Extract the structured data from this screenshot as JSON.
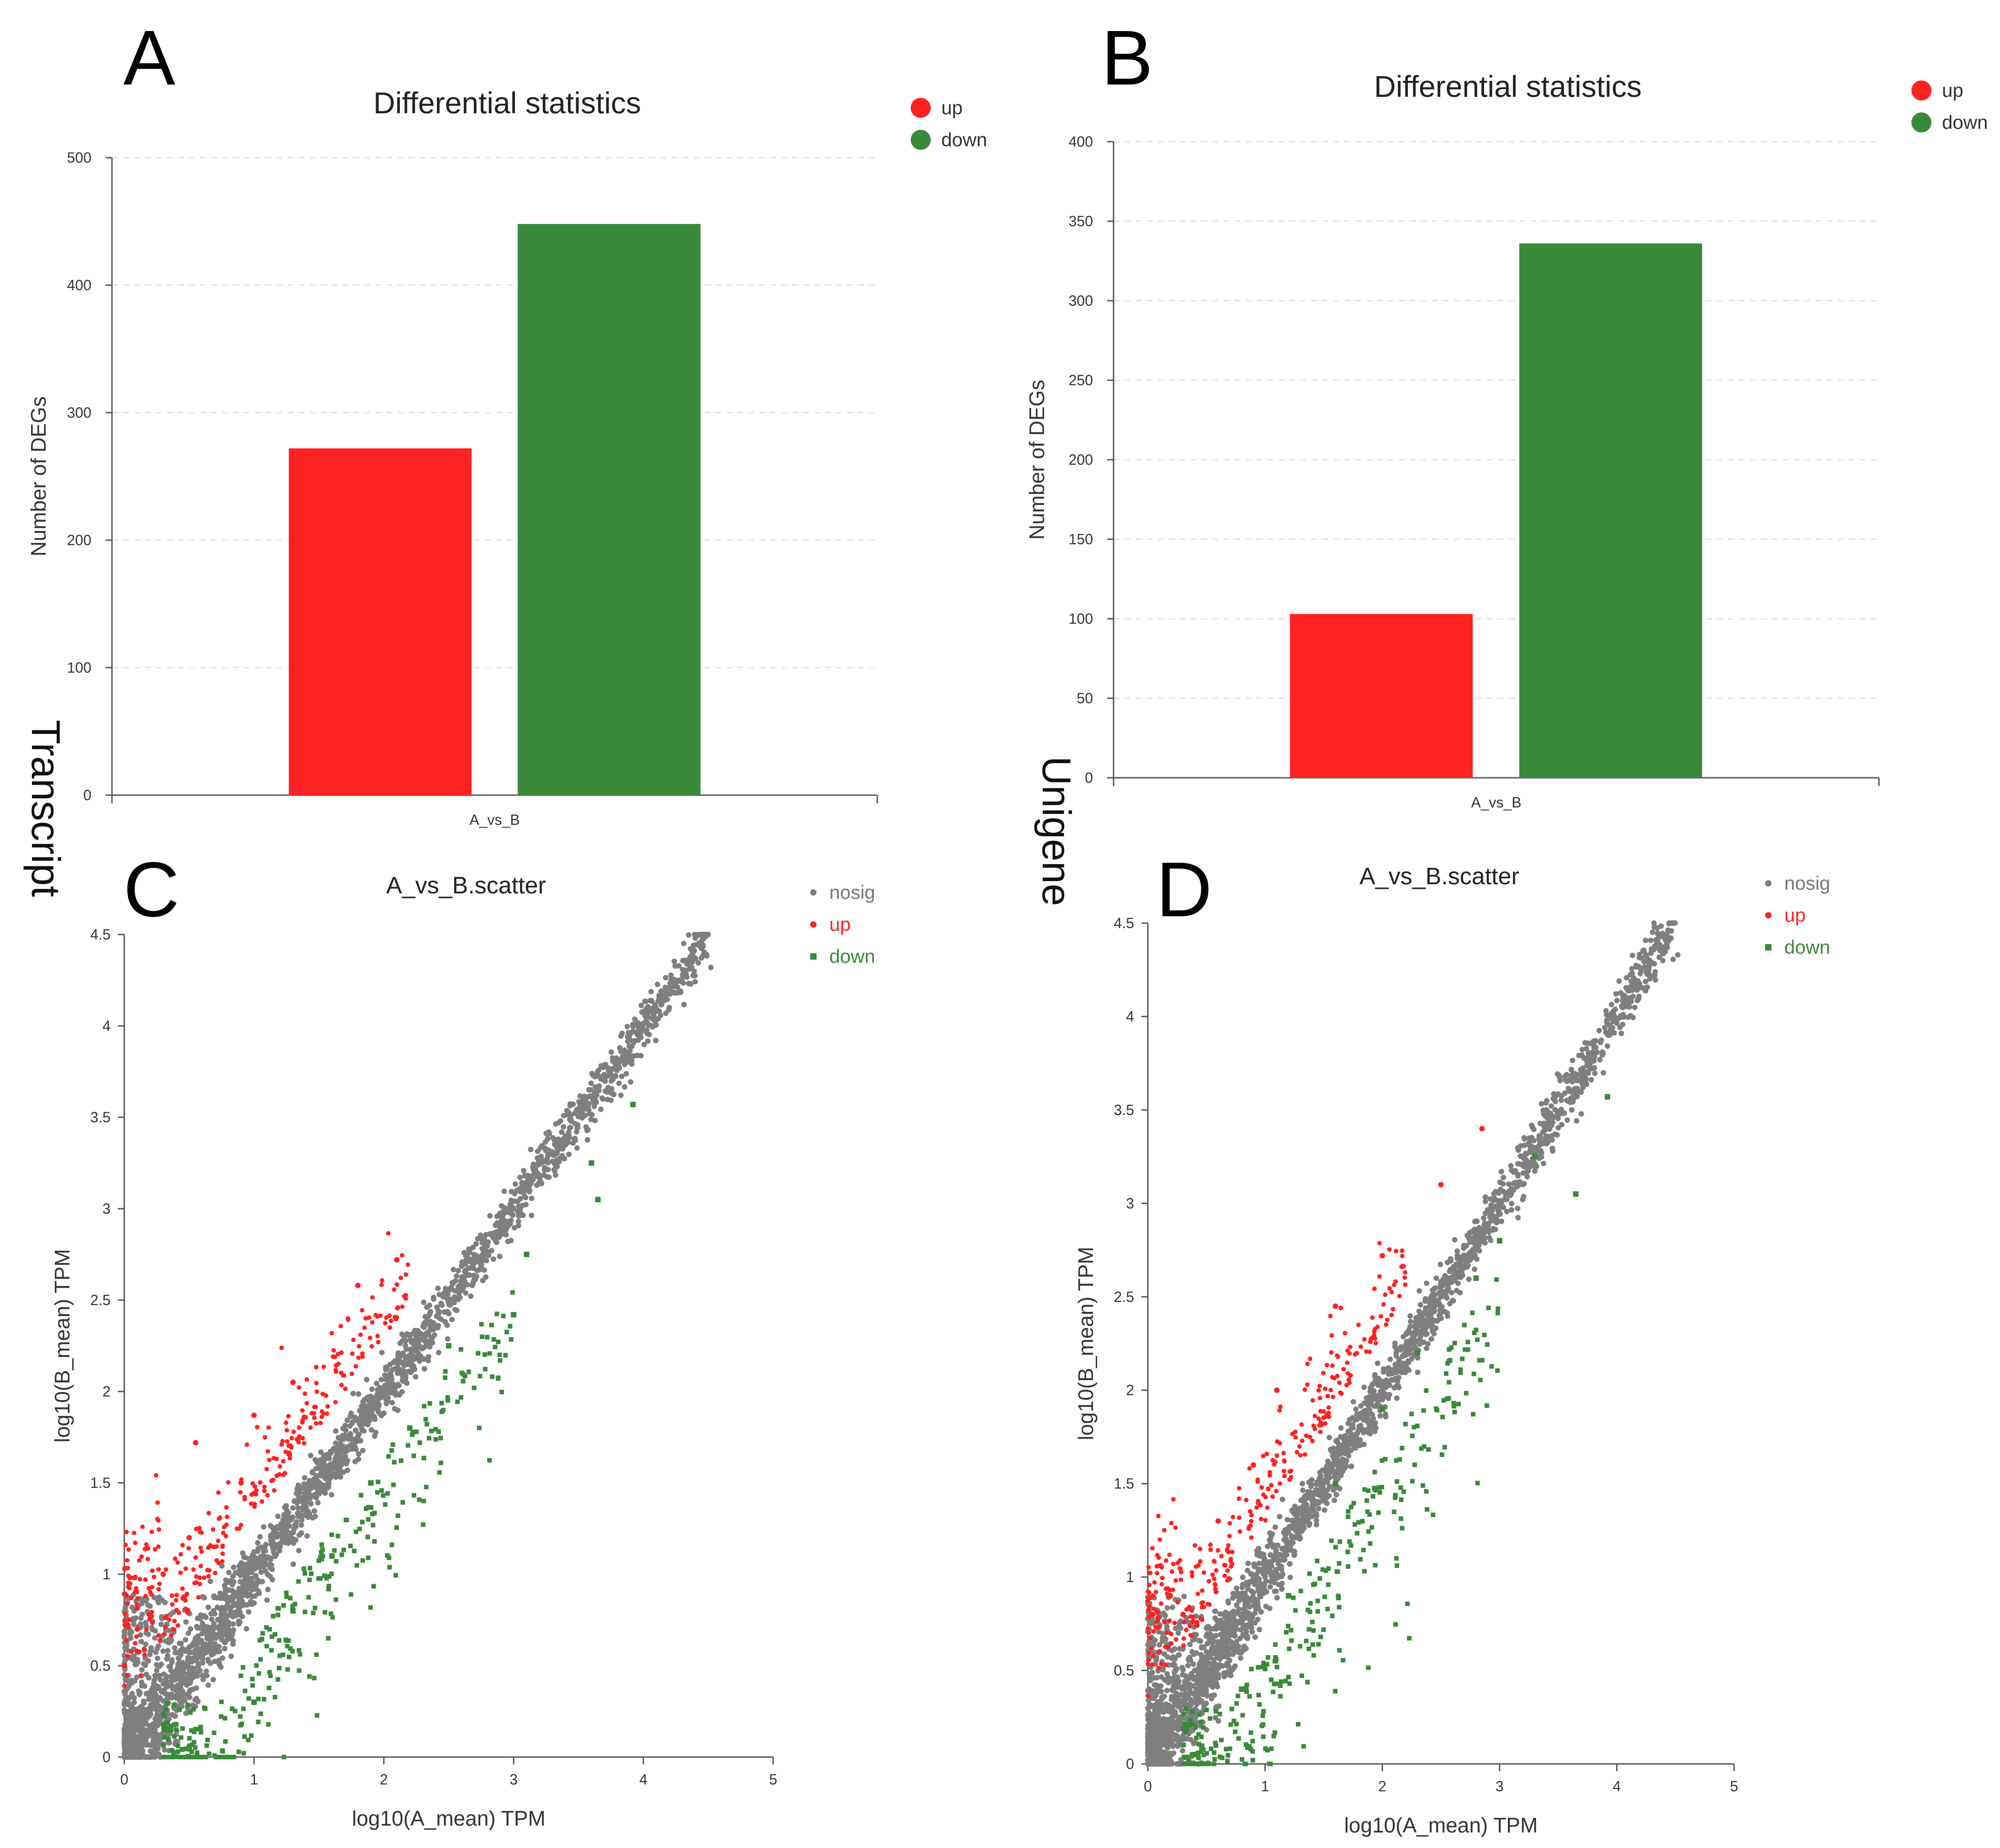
{
  "side_labels": {
    "left": "Transcript",
    "right": "Unigene"
  },
  "colors": {
    "up": "#ff2222",
    "down": "#3a8a3a",
    "nosig": "#7f7f7f",
    "grid": "#e3e3e3",
    "axis": "#555555"
  },
  "chart_data": [
    {
      "panel": "A",
      "type": "bar",
      "title": "Differential statistics",
      "ylabel": "Number of DEGs",
      "xlabel": "",
      "categories": [
        "A_vs_B"
      ],
      "series": [
        {
          "name": "up",
          "values": [
            272
          ]
        },
        {
          "name": "down",
          "values": [
            448
          ]
        }
      ],
      "ylim": [
        0,
        500
      ],
      "yticks": [
        0,
        100,
        200,
        300,
        400,
        500
      ],
      "legend": "top-right",
      "grid": true
    },
    {
      "panel": "B",
      "type": "bar",
      "title": "Differential statistics",
      "ylabel": "Number of DEGs",
      "xlabel": "",
      "categories": [
        "A_vs_B"
      ],
      "series": [
        {
          "name": "up",
          "values": [
            103
          ]
        },
        {
          "name": "down",
          "values": [
            336
          ]
        }
      ],
      "ylim": [
        0,
        400
      ],
      "yticks": [
        0,
        50,
        100,
        150,
        200,
        250,
        300,
        350,
        400
      ],
      "legend": "top-right",
      "grid": true
    },
    {
      "panel": "C",
      "type": "scatter",
      "title": "A_vs_B.scatter",
      "xlabel": "log10(A_mean) TPM",
      "ylabel": "log10(B_mean) TPM",
      "xlim": [
        0,
        5
      ],
      "ylim": [
        0,
        4.5
      ],
      "xticks": [
        0,
        1,
        2,
        3,
        4,
        5
      ],
      "yticks": [
        0,
        0.5,
        1,
        1.5,
        2,
        2.5,
        3,
        3.5,
        4,
        4.5
      ],
      "legend": "top-right",
      "series": [
        {
          "name": "nosig",
          "description_points": [
            [
              0.2,
              0.15
            ],
            [
              0.6,
              0.55
            ],
            [
              1.0,
              0.95
            ],
            [
              1.4,
              1.35
            ],
            [
              1.8,
              1.75
            ],
            [
              2.2,
              2.15
            ],
            [
              2.6,
              2.6
            ],
            [
              3.0,
              3.0
            ],
            [
              3.4,
              3.35
            ],
            [
              3.8,
              3.8
            ],
            [
              4.2,
              4.1
            ],
            [
              4.4,
              4.48
            ],
            [
              4.52,
              4.32
            ]
          ]
        },
        {
          "name": "up",
          "description_points": [
            [
              0.0,
              0.5
            ],
            [
              0.1,
              0.7
            ],
            [
              0.3,
              1.0
            ],
            [
              0.5,
              1.2
            ],
            [
              0.55,
              1.72
            ],
            [
              0.9,
              1.5
            ],
            [
              1.0,
              1.87
            ],
            [
              1.3,
              2.05
            ],
            [
              1.8,
              2.58
            ],
            [
              2.1,
              2.72
            ]
          ]
        },
        {
          "name": "down",
          "description_points": [
            [
              0.5,
              0.05
            ],
            [
              1.0,
              0.3
            ],
            [
              1.3,
              0.8
            ],
            [
              1.6,
              1.1
            ],
            [
              1.9,
              1.5
            ],
            [
              2.2,
              1.8
            ],
            [
              2.5,
              2.25
            ],
            [
              3.0,
              2.42
            ],
            [
              3.1,
              2.75
            ],
            [
              3.6,
              3.25
            ],
            [
              3.65,
              3.05
            ],
            [
              3.92,
              3.57
            ]
          ]
        }
      ]
    },
    {
      "panel": "D",
      "type": "scatter",
      "title": "A_vs_B.scatter",
      "xlabel": "log10(A_mean) TPM",
      "ylabel": "log10(B_mean) TPM",
      "xlim": [
        0,
        5
      ],
      "ylim": [
        0,
        4.5
      ],
      "xticks": [
        0,
        1,
        2,
        3,
        4,
        5
      ],
      "yticks": [
        0,
        0.5,
        1,
        1.5,
        2,
        2.5,
        3,
        3.5,
        4,
        4.5
      ],
      "legend": "top-right",
      "series": [
        {
          "name": "nosig",
          "description_points": [
            [
              0.1,
              0.3
            ],
            [
              0.5,
              0.6
            ],
            [
              1.0,
              1.0
            ],
            [
              1.5,
              1.45
            ],
            [
              2.0,
              1.95
            ],
            [
              2.5,
              2.5
            ],
            [
              3.0,
              3.0
            ],
            [
              3.4,
              3.5
            ],
            [
              3.8,
              3.85
            ],
            [
              4.1,
              4.1
            ],
            [
              4.25,
              4.33
            ],
            [
              4.52,
              4.33
            ]
          ]
        },
        {
          "name": "up",
          "description_points": [
            [
              0.1,
              0.6
            ],
            [
              0.3,
              0.8
            ],
            [
              0.6,
              1.3
            ],
            [
              0.9,
              1.6
            ],
            [
              1.1,
              2.0
            ],
            [
              1.6,
              2.45
            ],
            [
              2.0,
              2.72
            ],
            [
              2.5,
              3.1
            ],
            [
              2.85,
              3.4
            ]
          ]
        },
        {
          "name": "down",
          "description_points": [
            [
              0.4,
              0.05
            ],
            [
              0.8,
              0.4
            ],
            [
              1.2,
              0.9
            ],
            [
              1.6,
              1.5
            ],
            [
              2.0,
              1.9
            ],
            [
              2.3,
              2.2
            ],
            [
              2.8,
              2.6
            ],
            [
              3.0,
              2.8
            ],
            [
              3.3,
              3.25
            ],
            [
              3.65,
              3.05
            ],
            [
              3.92,
              3.57
            ]
          ]
        }
      ]
    }
  ]
}
